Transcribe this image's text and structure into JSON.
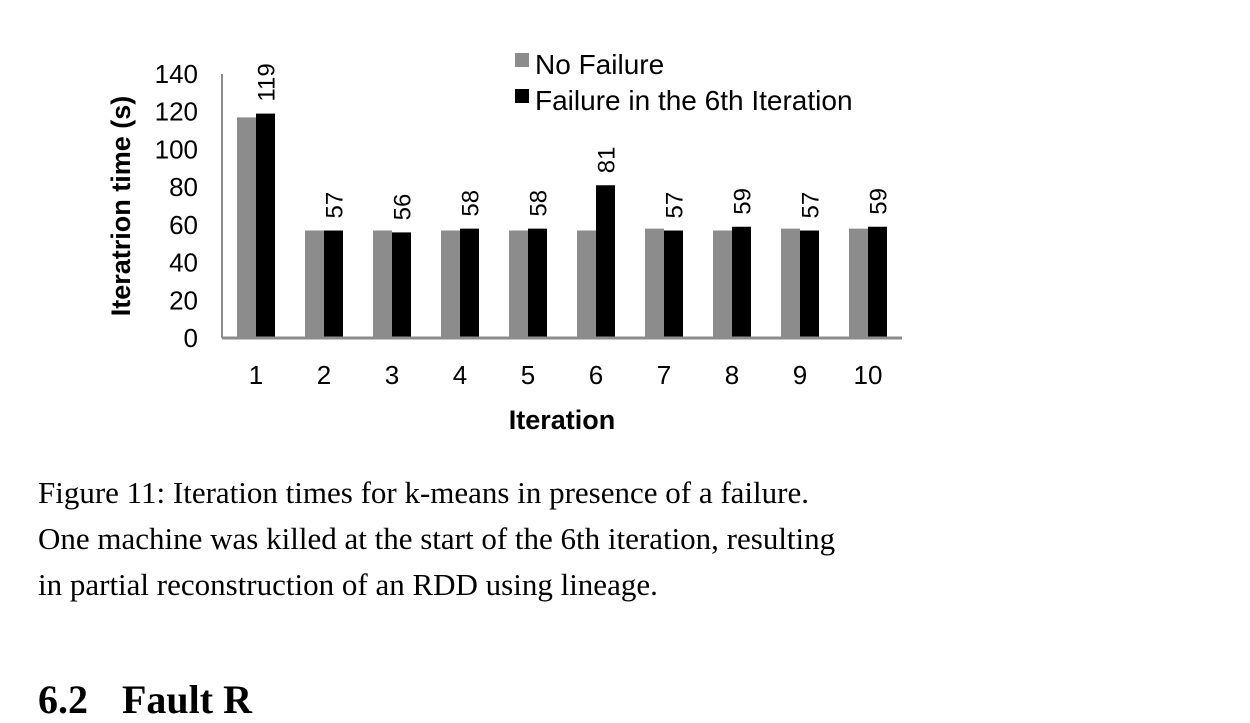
{
  "chart_data": {
    "type": "bar",
    "xlabel": "Iteration",
    "ylabel": "Iteratrion time (s)",
    "ylim": [
      0,
      140
    ],
    "yticks": [
      0,
      20,
      40,
      60,
      80,
      100,
      120,
      140
    ],
    "categories": [
      "1",
      "2",
      "3",
      "4",
      "5",
      "6",
      "7",
      "8",
      "9",
      "10"
    ],
    "series": [
      {
        "name": "No Failure",
        "color": "#8c8c8c",
        "values": [
          117,
          57,
          57,
          57,
          57,
          57,
          58,
          57,
          58,
          58
        ]
      },
      {
        "name": "Failure in the 6th Iteration",
        "color": "#000000",
        "values": [
          119,
          57,
          56,
          58,
          58,
          81,
          57,
          59,
          57,
          59
        ]
      }
    ],
    "data_labels": [
      "119",
      "57",
      "56",
      "58",
      "58",
      "81",
      "57",
      "59",
      "57",
      "59"
    ],
    "legend_position": "top-right",
    "grid": false
  },
  "caption": {
    "line1": "Figure 11: Iteration times for k-means in presence of a failure.",
    "line2": "One machine was killed at the start of the 6th iteration, resulting",
    "line3": "in partial reconstruction of an RDD using lineage."
  },
  "section": {
    "number": "6.2",
    "title": "Fault R"
  }
}
